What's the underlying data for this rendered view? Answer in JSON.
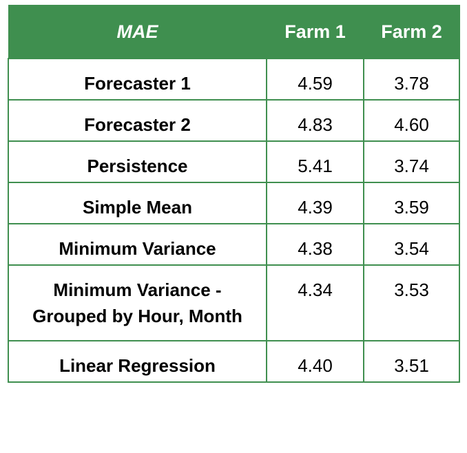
{
  "header": {
    "metric": "MAE",
    "col1": "Farm 1",
    "col2": "Farm 2"
  },
  "rows": [
    {
      "label": "Forecaster 1",
      "farm1": "4.59",
      "farm2": "3.78"
    },
    {
      "label": "Forecaster 2",
      "farm1": "4.83",
      "farm2": "4.60"
    },
    {
      "label": "Persistence",
      "farm1": "5.41",
      "farm2": "3.74"
    },
    {
      "label": "Simple Mean",
      "farm1": "4.39",
      "farm2": "3.59"
    },
    {
      "label": "Minimum Variance",
      "farm1": "4.38",
      "farm2": "3.54"
    },
    {
      "label": "Minimum Variance - Grouped by Hour, Month",
      "farm1": "4.34",
      "farm2": "3.53"
    },
    {
      "label": "Linear Regression",
      "farm1": "4.40",
      "farm2": "3.51"
    }
  ],
  "colors": {
    "header_bg": "#3f8f4f",
    "header_text": "#ffffff",
    "border": "#3f8f4f"
  }
}
